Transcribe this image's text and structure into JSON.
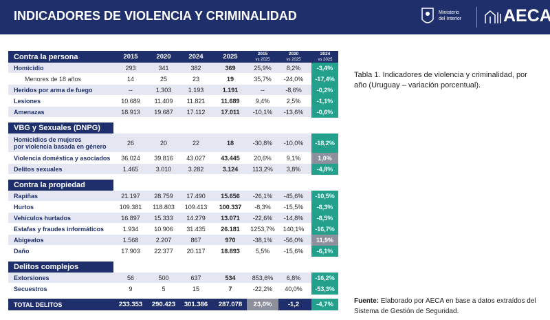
{
  "header": {
    "title": "INDICADORES DE VIOLENCIA Y CRIMINALIDAD",
    "ministry": "Ministerio\ndel Interior",
    "logo": "AECA"
  },
  "table": {
    "columns": [
      "2015",
      "2020",
      "2024",
      "2025",
      {
        "top": "2015",
        "bottom": "vs 2025"
      },
      {
        "top": "2020",
        "bottom": "vs 2025"
      },
      {
        "top": "2024",
        "bottom": "vs 2025"
      }
    ],
    "sections": [
      {
        "title": "Contra la persona",
        "rows": [
          {
            "label": "Homicidio",
            "cells": [
              "293",
              "341",
              "382",
              "369",
              "25,9%",
              "8,2%",
              "-3,4%"
            ]
          },
          {
            "label": "Menores de 18 años",
            "indent": true,
            "cells": [
              "14",
              "25",
              "23",
              "19",
              "35,7%",
              "-24,0%",
              "-17,4%"
            ]
          },
          {
            "label": "Heridos por arma de fuego",
            "cells": [
              "--",
              "1.303",
              "1.193",
              "1.191",
              "--",
              "-8,6%",
              "-0,2%"
            ]
          },
          {
            "label": "Lesiones",
            "cells": [
              "10.689",
              "11.409",
              "11.821",
              "11.689",
              "9,4%",
              "2,5%",
              "-1,1%"
            ]
          },
          {
            "label": "Amenazas",
            "cells": [
              "18.913",
              "19.687",
              "17.112",
              "17.011",
              "-10,1%",
              "-13,6%",
              "-0,6%"
            ]
          }
        ]
      },
      {
        "title": "VBG y Sexuales (DNPG)",
        "rows": [
          {
            "label": "Homicidios de mujeres\npor violencia basada en género",
            "cells": [
              "26",
              "20",
              "22",
              "18",
              "-30,8%",
              "-10,0%",
              "-18,2%"
            ]
          },
          {
            "label": "Violencia doméstica y asociados",
            "cells": [
              "36.024",
              "39.816",
              "43.027",
              "43.445",
              "20,6%",
              "9,1%",
              "1,0%"
            ]
          },
          {
            "label": "Delitos sexuales",
            "cells": [
              "1.465",
              "3.010",
              "3.282",
              "3.124",
              "113,2%",
              "3,8%",
              "-4,8%"
            ]
          }
        ]
      },
      {
        "title": "Contra la propiedad",
        "rows": [
          {
            "label": "Rapiñas",
            "cells": [
              "21.197",
              "28.759",
              "17.490",
              "15.656",
              "-26,1%",
              "-45,6%",
              "-10,5%"
            ]
          },
          {
            "label": "Hurtos",
            "cells": [
              "109.381",
              "118.803",
              "109.413",
              "100.337",
              "-8,3%",
              "-15,5%",
              "-8,3%"
            ]
          },
          {
            "label": "Vehículos hurtados",
            "cells": [
              "16.897",
              "15.333",
              "14.279",
              "13.071",
              "-22,6%",
              "-14,8%",
              "-8,5%"
            ]
          },
          {
            "label": "Estafas y fraudes informáticos",
            "cells": [
              "1.934",
              "10.906",
              "31.435",
              "26.181",
              "1253,7%",
              "140,1%",
              "-16,7%"
            ]
          },
          {
            "label": "Abigeatos",
            "cells": [
              "1.568",
              "2.207",
              "867",
              "970",
              "-38,1%",
              "-56,0%",
              "11,9%"
            ]
          },
          {
            "label": "Daño",
            "cells": [
              "17.903",
              "22.377",
              "20.117",
              "18.893",
              "5,5%",
              "-15,6%",
              "-6,1%"
            ]
          }
        ]
      },
      {
        "title": "Delitos complejos",
        "rows": [
          {
            "label": "Extorsiones",
            "cells": [
              "56",
              "500",
              "637",
              "534",
              "853,6%",
              "6,8%",
              "-16,2%"
            ]
          },
          {
            "label": "Secuestros",
            "cells": [
              "9",
              "5",
              "15",
              "7",
              "-22,2%",
              "40,0%",
              "-53,3%"
            ]
          }
        ]
      }
    ],
    "total": {
      "label": "TOTAL DELITOS",
      "cells": [
        "233.353",
        "290.423",
        "301.386",
        "287.078",
        "23,0%",
        "-1,2",
        "-4,7%"
      ]
    }
  },
  "caption": "Tabla 1. Indicadores de violencia y criminalidad, por año (Uruguay – variación porcentual).",
  "source": {
    "label": "Fuente:",
    "text": "Elaborado por AECA en base a datos extraídos del Sistema de Gestión de Seguridad."
  }
}
